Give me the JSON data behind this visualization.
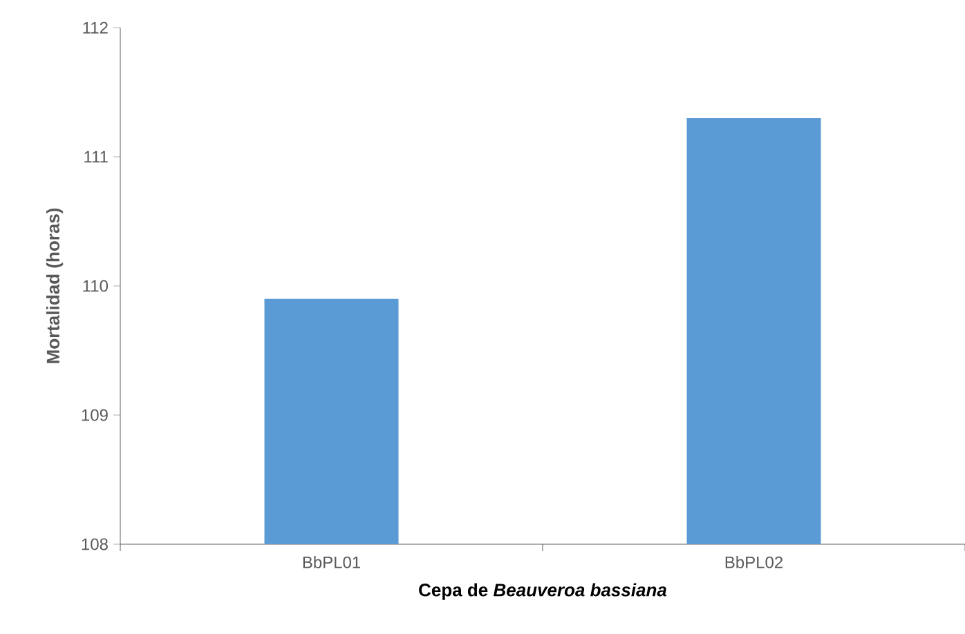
{
  "chart_data": {
    "type": "bar",
    "categories": [
      "BbPL01",
      "BbPL02"
    ],
    "values": [
      109.9,
      111.3
    ],
    "color": "#5b9bd5",
    "xlabel": "Cepa de *Beauveroa bassiana*",
    "ylabel": "Mortalidad (horas)",
    "ylim": [
      108,
      112
    ],
    "yticks": [
      108,
      109,
      110,
      111,
      112
    ]
  }
}
